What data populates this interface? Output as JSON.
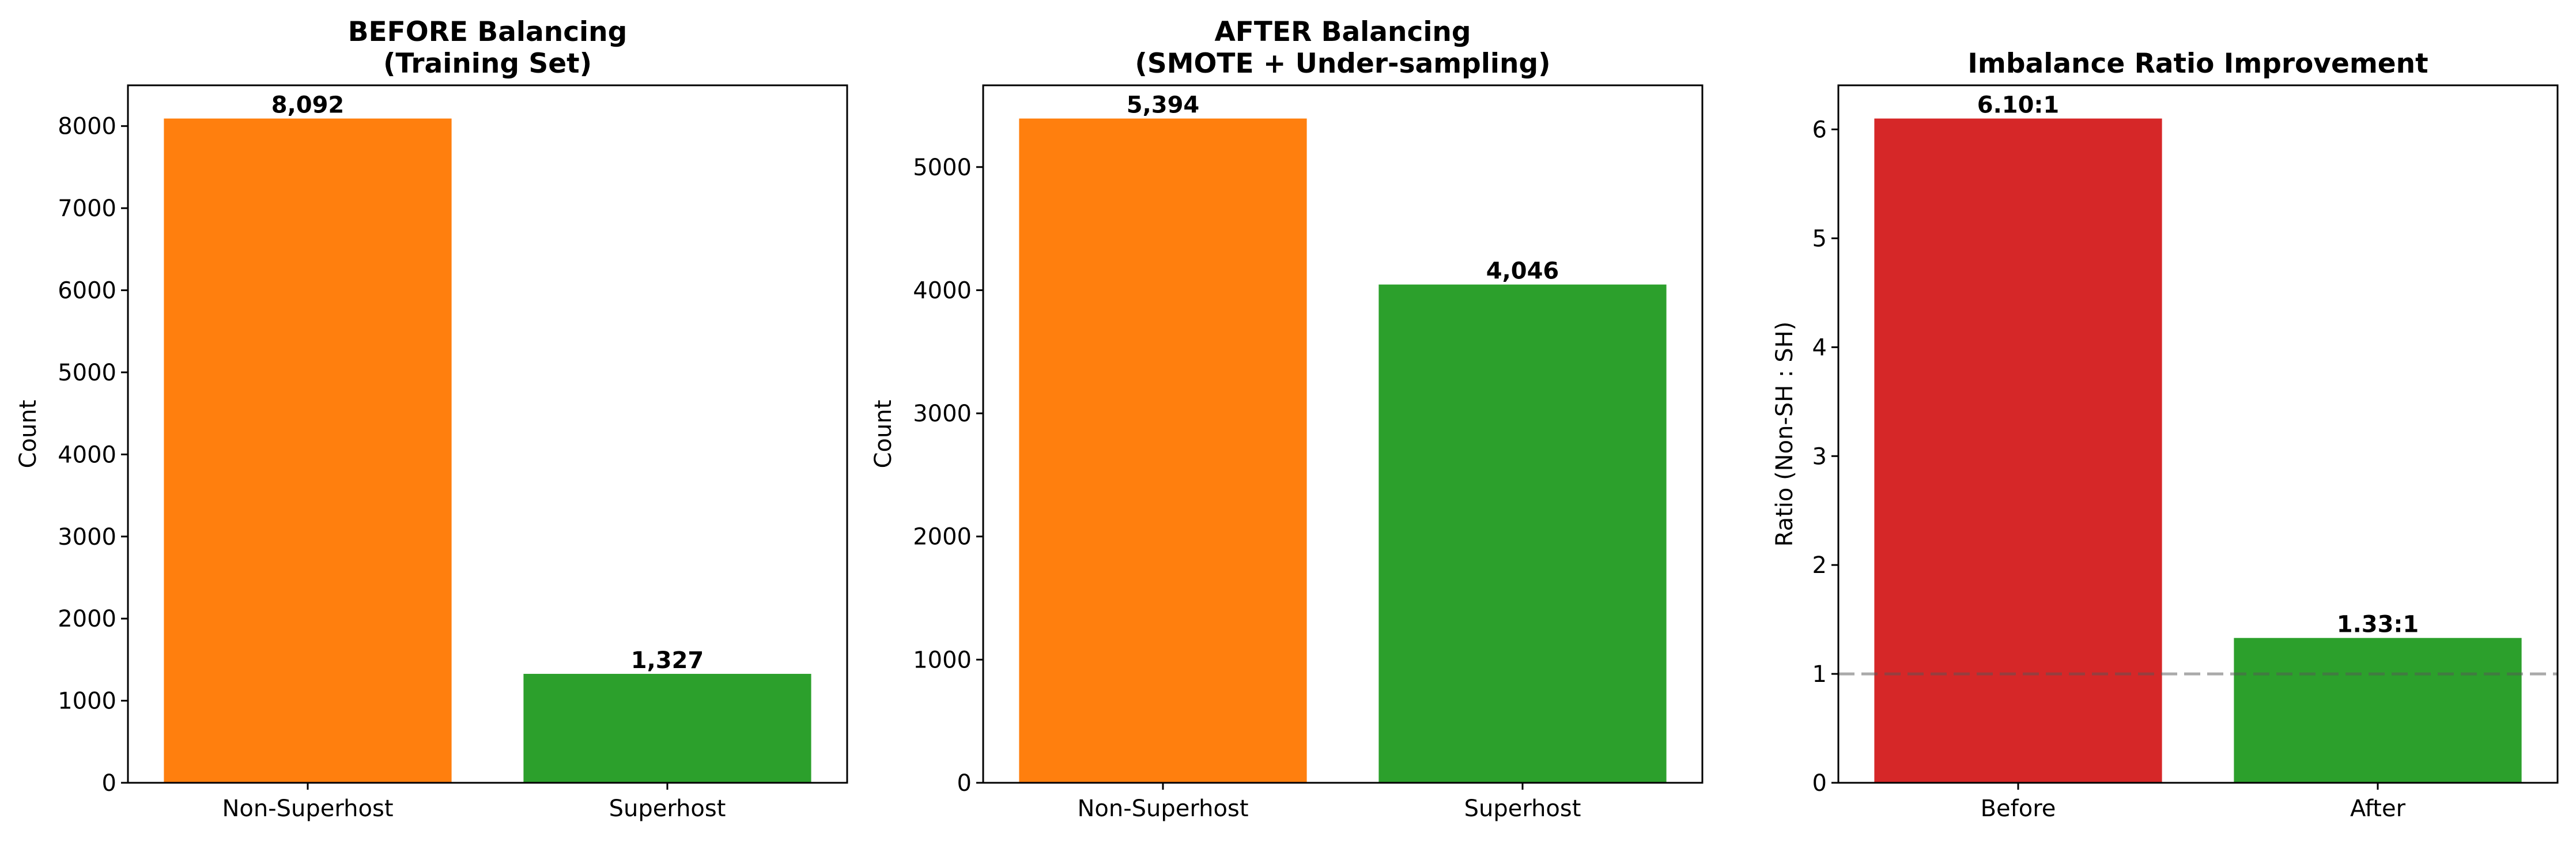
{
  "chart_data": [
    {
      "type": "bar",
      "title": [
        "BEFORE Balancing",
        "(Training Set)"
      ],
      "xlabel": "",
      "ylabel": "Count",
      "categories": [
        "Non-Superhost",
        "Superhost"
      ],
      "values": [
        8092,
        1327
      ],
      "value_labels": [
        "8,092",
        "1,327"
      ],
      "colors": [
        "#ff7f0e",
        "#2ca02c"
      ],
      "ylim": [
        0,
        8496.6
      ],
      "yticks": [
        0,
        1000,
        2000,
        3000,
        4000,
        5000,
        6000,
        7000,
        8000
      ],
      "grid": false
    },
    {
      "type": "bar",
      "title": [
        "AFTER Balancing",
        "(SMOTE + Under-sampling)"
      ],
      "xlabel": "",
      "ylabel": "Count",
      "categories": [
        "Non-Superhost",
        "Superhost"
      ],
      "values": [
        5394,
        4046
      ],
      "value_labels": [
        "5,394",
        "4,046"
      ],
      "colors": [
        "#ff7f0e",
        "#2ca02c"
      ],
      "ylim": [
        0,
        5663.7
      ],
      "yticks": [
        0,
        1000,
        2000,
        3000,
        4000,
        5000
      ],
      "grid": false
    },
    {
      "type": "bar",
      "title": [
        "Imbalance Ratio Improvement"
      ],
      "xlabel": "",
      "ylabel": "Ratio (Non-SH : SH)",
      "categories": [
        "Before",
        "After"
      ],
      "values": [
        6.1,
        1.33
      ],
      "value_labels": [
        "6.10:1",
        "1.33:1"
      ],
      "colors": [
        "#d62728",
        "#2ca02c"
      ],
      "ylim": [
        0,
        6.405
      ],
      "yticks": [
        0,
        1,
        2,
        3,
        4,
        5,
        6
      ],
      "reference_line": {
        "y": 1,
        "style": "dashed",
        "color": "#555555"
      },
      "grid": false
    }
  ]
}
